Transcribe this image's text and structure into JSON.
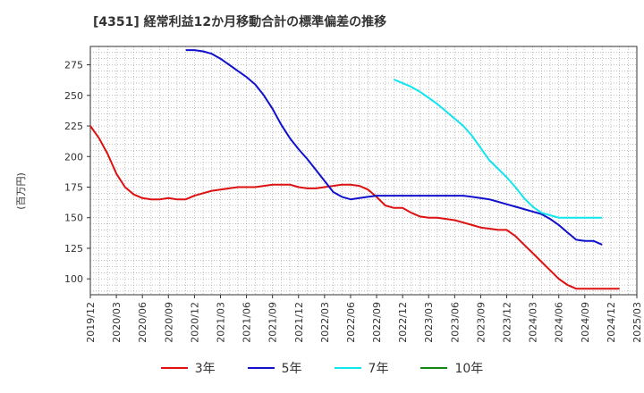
{
  "chart_data": {
    "type": "line",
    "title": "[4351]  経常利益12か月移動合計の標準偏差の推移",
    "ylabel": "(百万円)",
    "xlabel": "",
    "ylim": [
      87,
      290
    ],
    "y_ticks": [
      100,
      125,
      150,
      175,
      200,
      225,
      250,
      275
    ],
    "x_ticks": [
      "2019/12",
      "2020/03",
      "2020/06",
      "2020/09",
      "2020/12",
      "2021/03",
      "2021/06",
      "2021/09",
      "2021/12",
      "2022/03",
      "2022/06",
      "2022/09",
      "2022/12",
      "2023/03",
      "2023/06",
      "2023/09",
      "2023/12",
      "2024/03",
      "2024/06",
      "2024/09",
      "2024/12",
      "2025/03"
    ],
    "grid": true,
    "legend_position": "bottom",
    "series": [
      {
        "name": "3年",
        "color": "#dd1111",
        "start": "2019/12",
        "values": [
          225,
          215,
          202,
          186,
          175,
          169,
          166,
          165,
          165,
          166,
          165,
          165,
          168,
          170,
          172,
          173,
          174,
          175,
          175,
          175,
          176,
          177,
          177,
          177,
          175,
          174,
          174,
          175,
          176,
          177,
          177,
          176,
          173,
          167,
          160,
          158,
          158,
          154,
          151,
          150,
          150,
          149,
          148,
          146,
          144,
          142,
          141,
          140,
          140,
          135,
          128,
          121,
          114,
          107,
          100,
          95,
          92,
          92,
          92,
          92,
          92,
          92
        ],
        "label_text": "3年"
      },
      {
        "name": "5年",
        "color": "#1111cc",
        "start": "2020/11",
        "values": [
          287,
          287,
          286,
          284,
          280,
          275,
          270,
          265,
          259,
          250,
          239,
          226,
          215,
          206,
          198,
          189,
          180,
          171,
          167,
          165,
          166,
          167,
          168,
          168,
          168,
          168,
          168,
          168,
          168,
          168,
          168,
          168,
          168,
          167,
          166,
          165,
          163,
          161,
          159,
          157,
          155,
          153,
          149,
          144,
          138,
          132,
          131,
          131,
          128
        ],
        "label_text": "5年"
      },
      {
        "name": "7年",
        "color": "#11e5ee",
        "start": "2022/11",
        "values": [
          263,
          260,
          257,
          253,
          248,
          243,
          237,
          231,
          225,
          217,
          207,
          197,
          190,
          183,
          175,
          166,
          159,
          154,
          152,
          150,
          150,
          150,
          150,
          150,
          150
        ],
        "label_text": "7年"
      },
      {
        "name": "10年",
        "color": "#118811",
        "start": "2019/12",
        "values": [],
        "label_text": "10年"
      }
    ]
  }
}
